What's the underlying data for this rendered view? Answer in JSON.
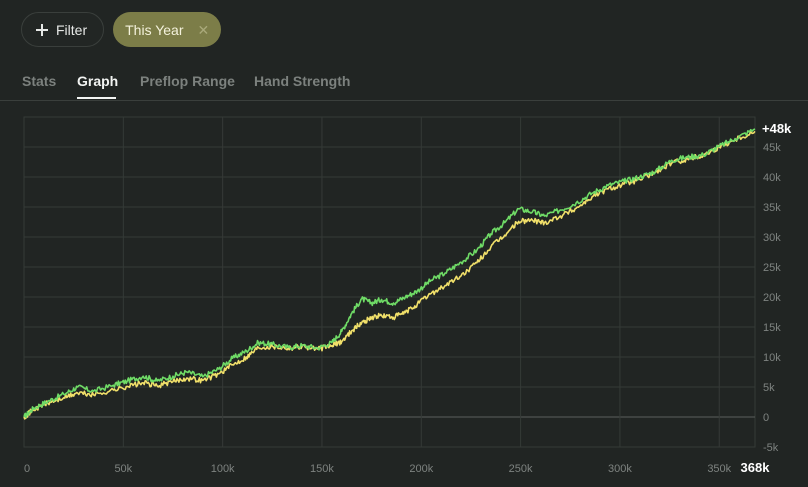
{
  "filter_bar": {
    "filter_label": "Filter",
    "chip_label": "This Year",
    "chip_close": "✕"
  },
  "tabs": [
    {
      "label": "Stats",
      "active": false
    },
    {
      "label": "Graph",
      "active": true
    },
    {
      "label": "Preflop Range",
      "active": false
    },
    {
      "label": "Hand Strength",
      "active": false
    }
  ],
  "colors": {
    "background": "#212523",
    "grid": "#353a37",
    "green_series": "#6fdb66",
    "yellow_series": "#f1e06a",
    "chip_bg": "#7c7d48"
  },
  "chart_data": {
    "type": "line",
    "title": "",
    "xlabel": "",
    "ylabel": "",
    "xlim": [
      0,
      368000
    ],
    "ylim": [
      -5000,
      50000
    ],
    "x_ticks": [
      {
        "value": 0,
        "label": "0"
      },
      {
        "value": 50000,
        "label": "50k"
      },
      {
        "value": 100000,
        "label": "100k"
      },
      {
        "value": 150000,
        "label": "150k"
      },
      {
        "value": 200000,
        "label": "200k"
      },
      {
        "value": 250000,
        "label": "250k"
      },
      {
        "value": 300000,
        "label": "300k"
      },
      {
        "value": 350000,
        "label": "350k"
      }
    ],
    "y_ticks": [
      {
        "value": 45000,
        "label": "45k"
      },
      {
        "value": 40000,
        "label": "40k"
      },
      {
        "value": 35000,
        "label": "35k"
      },
      {
        "value": 30000,
        "label": "30k"
      },
      {
        "value": 25000,
        "label": "25k"
      },
      {
        "value": 20000,
        "label": "20k"
      },
      {
        "value": 15000,
        "label": "15k"
      },
      {
        "value": 10000,
        "label": "10k"
      },
      {
        "value": 5000,
        "label": "5k"
      },
      {
        "value": 0,
        "label": "0"
      },
      {
        "value": -5000,
        "label": "-5k"
      }
    ],
    "end_x_label": "368k",
    "end_y_label": "+48k",
    "grid": true,
    "series": [
      {
        "color": "#6fdb66",
        "points": [
          [
            0,
            0
          ],
          [
            5000,
            1500
          ],
          [
            12000,
            2600
          ],
          [
            20000,
            3800
          ],
          [
            27000,
            5000
          ],
          [
            35000,
            4300
          ],
          [
            45000,
            5300
          ],
          [
            52000,
            6000
          ],
          [
            60000,
            6800
          ],
          [
            67000,
            6000
          ],
          [
            75000,
            6800
          ],
          [
            82000,
            7500
          ],
          [
            90000,
            6700
          ],
          [
            98000,
            8000
          ],
          [
            105000,
            9800
          ],
          [
            112000,
            11000
          ],
          [
            118000,
            12400
          ],
          [
            125000,
            12100
          ],
          [
            133000,
            11600
          ],
          [
            140000,
            11900
          ],
          [
            148000,
            11500
          ],
          [
            155000,
            12400
          ],
          [
            160000,
            14300
          ],
          [
            165000,
            17300
          ],
          [
            170000,
            19700
          ],
          [
            175000,
            19000
          ],
          [
            180000,
            19600
          ],
          [
            186000,
            19000
          ],
          [
            192000,
            20000
          ],
          [
            198000,
            21000
          ],
          [
            205000,
            22800
          ],
          [
            212000,
            24000
          ],
          [
            220000,
            25800
          ],
          [
            228000,
            27800
          ],
          [
            235000,
            30500
          ],
          [
            242000,
            32400
          ],
          [
            249000,
            34700
          ],
          [
            256000,
            34200
          ],
          [
            262000,
            33500
          ],
          [
            270000,
            34500
          ],
          [
            278000,
            35700
          ],
          [
            286000,
            37300
          ],
          [
            294000,
            38600
          ],
          [
            302000,
            39300
          ],
          [
            310000,
            40000
          ],
          [
            318000,
            41000
          ],
          [
            326000,
            42800
          ],
          [
            334000,
            43300
          ],
          [
            342000,
            43700
          ],
          [
            350000,
            45100
          ],
          [
            358000,
            46400
          ],
          [
            368000,
            48000
          ]
        ]
      },
      {
        "color": "#f1e06a",
        "points": [
          [
            0,
            0
          ],
          [
            5000,
            1300
          ],
          [
            12000,
            2300
          ],
          [
            20000,
            3200
          ],
          [
            27000,
            4000
          ],
          [
            35000,
            3700
          ],
          [
            45000,
            4500
          ],
          [
            52000,
            5100
          ],
          [
            60000,
            5700
          ],
          [
            67000,
            5200
          ],
          [
            75000,
            5900
          ],
          [
            82000,
            6500
          ],
          [
            90000,
            6100
          ],
          [
            98000,
            7200
          ],
          [
            105000,
            8700
          ],
          [
            112000,
            10000
          ],
          [
            118000,
            11600
          ],
          [
            125000,
            11800
          ],
          [
            133000,
            11500
          ],
          [
            140000,
            11800
          ],
          [
            148000,
            11300
          ],
          [
            155000,
            11900
          ],
          [
            160000,
            12600
          ],
          [
            165000,
            14400
          ],
          [
            170000,
            15700
          ],
          [
            175000,
            16600
          ],
          [
            180000,
            16900
          ],
          [
            186000,
            16600
          ],
          [
            192000,
            17400
          ],
          [
            198000,
            18800
          ],
          [
            205000,
            20600
          ],
          [
            212000,
            21900
          ],
          [
            220000,
            23500
          ],
          [
            228000,
            25700
          ],
          [
            235000,
            28300
          ],
          [
            242000,
            30300
          ],
          [
            249000,
            32600
          ],
          [
            256000,
            32800
          ],
          [
            262000,
            32400
          ],
          [
            270000,
            33500
          ],
          [
            278000,
            34800
          ],
          [
            286000,
            36700
          ],
          [
            294000,
            38000
          ],
          [
            302000,
            38800
          ],
          [
            310000,
            39600
          ],
          [
            318000,
            40800
          ],
          [
            326000,
            42300
          ],
          [
            334000,
            43000
          ],
          [
            342000,
            43600
          ],
          [
            350000,
            45000
          ],
          [
            358000,
            46300
          ],
          [
            368000,
            47600
          ]
        ]
      }
    ]
  }
}
